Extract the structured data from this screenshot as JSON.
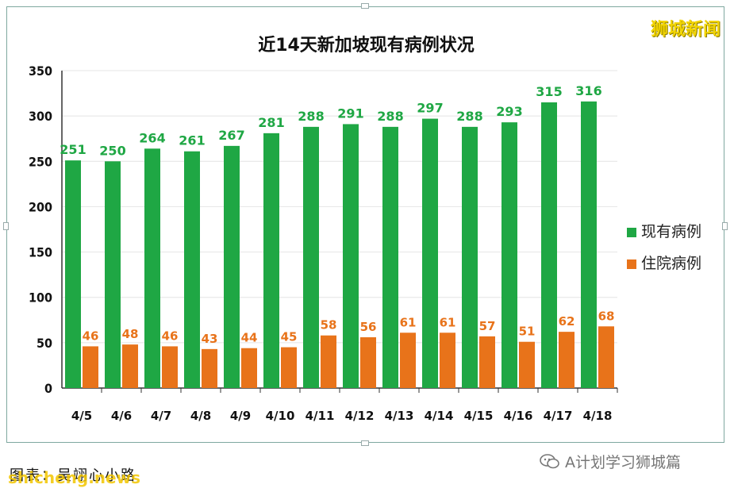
{
  "title": "近14天新加坡现有病例状况",
  "brand": "狮城新闻",
  "caption": "图表：吴翊心小路",
  "source_mark": "shicheng.news",
  "watermark": "A计划学习狮城篇",
  "colors": {
    "active": "#1fa744",
    "hospital": "#e8731a",
    "active_label": "#1fa744",
    "hospital_label": "#e8731a"
  },
  "chart_data": {
    "type": "bar",
    "title": "近14天新加坡现有病例状况",
    "categories": [
      "4/5",
      "4/6",
      "4/7",
      "4/8",
      "4/9",
      "4/10",
      "4/11",
      "4/12",
      "4/13",
      "4/14",
      "4/15",
      "4/16",
      "4/17",
      "4/18"
    ],
    "series": [
      {
        "name": "现有病例",
        "values": [
          251,
          250,
          264,
          261,
          267,
          281,
          288,
          291,
          288,
          297,
          288,
          293,
          315,
          316
        ]
      },
      {
        "name": "住院病例",
        "values": [
          46,
          48,
          46,
          43,
          44,
          45,
          58,
          56,
          61,
          61,
          57,
          51,
          62,
          68
        ]
      }
    ],
    "ylim": [
      0,
      350
    ],
    "yticks": [
      0,
      50,
      100,
      150,
      200,
      250,
      300,
      350
    ],
    "grid": true,
    "legend_position": "right"
  }
}
